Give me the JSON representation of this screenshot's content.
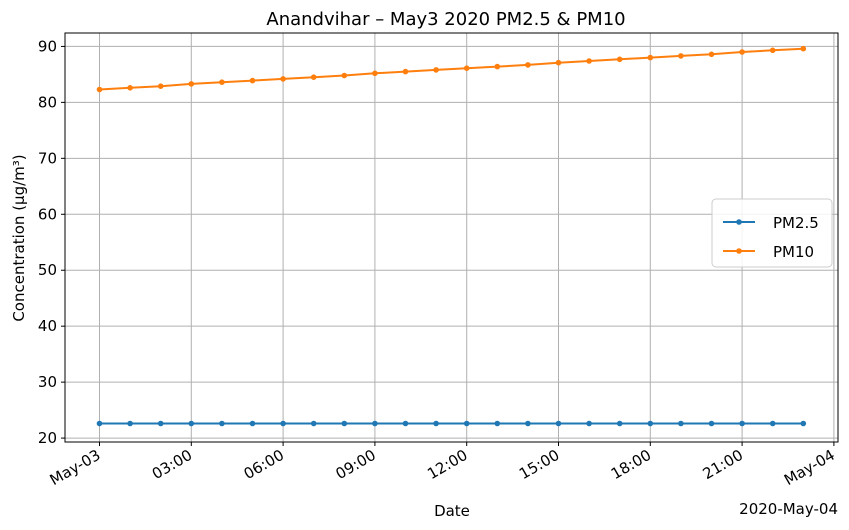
{
  "chart_data": {
    "type": "line",
    "title": "Anandvihar – May3 2020 PM2.5 & PM10",
    "xlabel": "Date",
    "ylabel": "Concentration (µg/m³)",
    "x_offset_label": "2020-May-04",
    "x": [
      "00:00",
      "01:00",
      "02:00",
      "03:00",
      "04:00",
      "05:00",
      "06:00",
      "07:00",
      "08:00",
      "09:00",
      "10:00",
      "11:00",
      "12:00",
      "13:00",
      "14:00",
      "15:00",
      "16:00",
      "17:00",
      "18:00",
      "19:00",
      "20:00",
      "21:00",
      "22:00",
      "23:00"
    ],
    "x_ticks": [
      "May-03",
      "03:00",
      "06:00",
      "09:00",
      "12:00",
      "15:00",
      "18:00",
      "21:00",
      "May-04"
    ],
    "ylim": [
      19.3,
      92.4
    ],
    "y_ticks": [
      20,
      30,
      40,
      50,
      60,
      70,
      80,
      90
    ],
    "grid": true,
    "legend_position": "center-right",
    "series": [
      {
        "name": "PM2.5",
        "color": "#1f77b4",
        "values": [
          22.6,
          22.6,
          22.6,
          22.6,
          22.6,
          22.6,
          22.6,
          22.6,
          22.6,
          22.6,
          22.6,
          22.6,
          22.6,
          22.6,
          22.6,
          22.6,
          22.6,
          22.6,
          22.6,
          22.6,
          22.6,
          22.6,
          22.6,
          22.6
        ]
      },
      {
        "name": "PM10",
        "color": "#ff7f0e",
        "values": [
          82.3,
          82.6,
          82.9,
          83.3,
          83.6,
          83.9,
          84.2,
          84.5,
          84.8,
          85.2,
          85.5,
          85.8,
          86.1,
          86.4,
          86.7,
          87.1,
          87.4,
          87.7,
          88.0,
          88.3,
          88.6,
          89.0,
          89.3,
          89.6
        ]
      }
    ]
  }
}
